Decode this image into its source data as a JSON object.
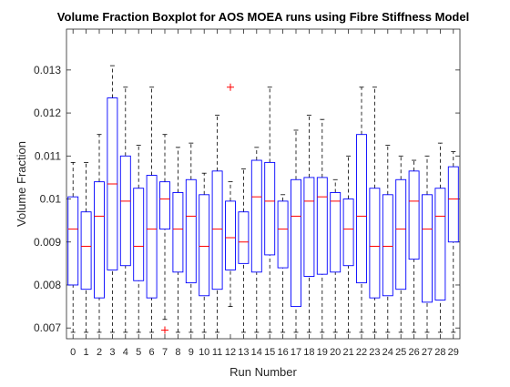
{
  "chart_data": {
    "type": "boxplot",
    "title": "Volume Fraction Boxplot for AOS MOEA runs using Fibre Stiffness Model",
    "xlabel": "Run Number",
    "ylabel": "Volume Fraction",
    "ylim": [
      0.00675,
      0.01395
    ],
    "yticks": [
      0.007,
      0.008,
      0.009,
      0.01,
      0.011,
      0.012,
      0.013
    ],
    "ytick_labels": [
      "0.007",
      "0.008",
      "0.009",
      "0.01",
      "0.011",
      "0.012",
      "0.013"
    ],
    "grid": false,
    "categories": [
      "0",
      "1",
      "2",
      "3",
      "4",
      "5",
      "6",
      "7",
      "8",
      "9",
      "10",
      "11",
      "12",
      "13",
      "14",
      "15",
      "16",
      "17",
      "18",
      "19",
      "20",
      "21",
      "22",
      "23",
      "24",
      "25",
      "26",
      "27",
      "28",
      "29"
    ],
    "boxes": [
      {
        "min": 0.0069,
        "q1": 0.008,
        "median": 0.0093,
        "q3": 0.01005,
        "max": 0.01085
      },
      {
        "min": 0.0069,
        "q1": 0.0079,
        "median": 0.0089,
        "q3": 0.0097,
        "max": 0.01085
      },
      {
        "min": 0.0069,
        "q1": 0.0077,
        "median": 0.0096,
        "q3": 0.0104,
        "max": 0.0115
      },
      {
        "min": 0.0069,
        "q1": 0.00835,
        "median": 0.01035,
        "q3": 0.01235,
        "max": 0.0131
      },
      {
        "min": 0.0069,
        "q1": 0.00845,
        "median": 0.00995,
        "q3": 0.011,
        "max": 0.0126
      },
      {
        "min": 0.0069,
        "q1": 0.0081,
        "median": 0.0089,
        "q3": 0.01025,
        "max": 0.01125
      },
      {
        "min": 0.0069,
        "q1": 0.0077,
        "median": 0.0093,
        "q3": 0.01055,
        "max": 0.0126
      },
      {
        "min": 0.0072,
        "q1": 0.0093,
        "median": 0.01,
        "q3": 0.0104,
        "max": 0.0115
      },
      {
        "min": 0.0069,
        "q1": 0.0083,
        "median": 0.0093,
        "q3": 0.01015,
        "max": 0.0112
      },
      {
        "min": 0.0069,
        "q1": 0.00805,
        "median": 0.0096,
        "q3": 0.01045,
        "max": 0.0113
      },
      {
        "min": 0.0069,
        "q1": 0.00775,
        "median": 0.0089,
        "q3": 0.0101,
        "max": 0.0106
      },
      {
        "min": 0.0069,
        "q1": 0.0079,
        "median": 0.0093,
        "q3": 0.01065,
        "max": 0.01195
      },
      {
        "min": 0.0075,
        "q1": 0.00835,
        "median": 0.0091,
        "q3": 0.00995,
        "max": 0.0104
      },
      {
        "min": 0.0069,
        "q1": 0.0085,
        "median": 0.009,
        "q3": 0.0097,
        "max": 0.0107
      },
      {
        "min": 0.0069,
        "q1": 0.0083,
        "median": 0.01005,
        "q3": 0.0109,
        "max": 0.0112
      },
      {
        "min": 0.0069,
        "q1": 0.0087,
        "median": 0.00995,
        "q3": 0.01085,
        "max": 0.0126
      },
      {
        "min": 0.0069,
        "q1": 0.0084,
        "median": 0.0093,
        "q3": 0.00995,
        "max": 0.0101
      },
      {
        "min": 0.0069,
        "q1": 0.0075,
        "median": 0.0096,
        "q3": 0.01045,
        "max": 0.0116
      },
      {
        "min": 0.0069,
        "q1": 0.0082,
        "median": 0.00995,
        "q3": 0.0105,
        "max": 0.01195
      },
      {
        "min": 0.0069,
        "q1": 0.00825,
        "median": 0.01005,
        "q3": 0.0105,
        "max": 0.01185
      },
      {
        "min": 0.0069,
        "q1": 0.0083,
        "median": 0.00995,
        "q3": 0.01015,
        "max": 0.01045
      },
      {
        "min": 0.0069,
        "q1": 0.00845,
        "median": 0.0093,
        "q3": 0.01,
        "max": 0.011
      },
      {
        "min": 0.0069,
        "q1": 0.00805,
        "median": 0.0096,
        "q3": 0.0115,
        "max": 0.0126
      },
      {
        "min": 0.0069,
        "q1": 0.0077,
        "median": 0.0089,
        "q3": 0.01025,
        "max": 0.0126
      },
      {
        "min": 0.0069,
        "q1": 0.00775,
        "median": 0.0089,
        "q3": 0.0101,
        "max": 0.01125
      },
      {
        "min": 0.0069,
        "q1": 0.0079,
        "median": 0.0093,
        "q3": 0.01045,
        "max": 0.011
      },
      {
        "min": 0.0069,
        "q1": 0.0086,
        "median": 0.00995,
        "q3": 0.01065,
        "max": 0.0109
      },
      {
        "min": 0.0069,
        "q1": 0.0076,
        "median": 0.0093,
        "q3": 0.0101,
        "max": 0.011
      },
      {
        "min": 0.0069,
        "q1": 0.00765,
        "median": 0.0096,
        "q3": 0.01025,
        "max": 0.0113
      },
      {
        "min": 0.0069,
        "q1": 0.009,
        "median": 0.01,
        "q3": 0.01075,
        "max": 0.0111
      }
    ],
    "outliers": [
      {
        "run": "7",
        "value": 0.00695
      },
      {
        "run": "12",
        "value": 0.0126
      }
    ],
    "colors": {
      "box": "#0000ff",
      "median": "#ff0000",
      "whisker": "#000000",
      "outlier": "#ff0000",
      "axes": "#262626"
    }
  }
}
